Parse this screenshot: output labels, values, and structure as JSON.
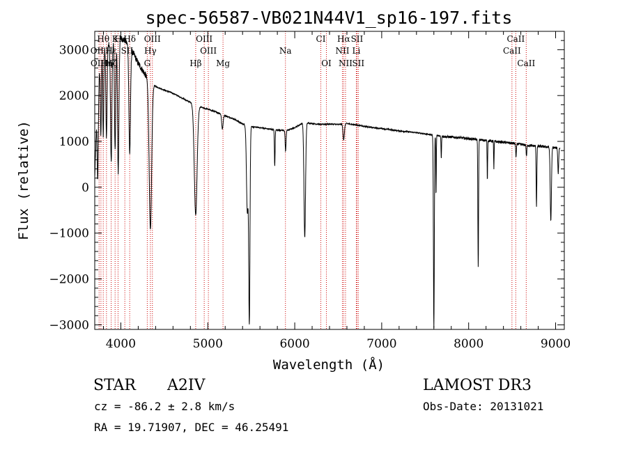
{
  "chart_data": {
    "type": "line",
    "title": "spec-56587-VB021N44V1_sp16-197.fits",
    "xlabel": "Wavelength (Å)",
    "ylabel": "Flux (relative)",
    "xlim": [
      3700,
      9100
    ],
    "ylim": [
      -3100,
      3400
    ],
    "xticks": [
      4000,
      5000,
      6000,
      7000,
      8000,
      9000
    ],
    "yticks": [
      -3000,
      -2000,
      -1000,
      0,
      1000,
      2000,
      3000
    ],
    "continuum": [
      [
        3700,
        200
      ],
      [
        3720,
        1300
      ],
      [
        3750,
        2400
      ],
      [
        3780,
        3000
      ],
      [
        3800,
        3050
      ],
      [
        3850,
        3100
      ],
      [
        3900,
        3150
      ],
      [
        3950,
        3200
      ],
      [
        4000,
        3250
      ],
      [
        4050,
        3200
      ],
      [
        4100,
        3050
      ],
      [
        4150,
        2900
      ],
      [
        4200,
        2700
      ],
      [
        4250,
        2550
      ],
      [
        4300,
        2400
      ],
      [
        4320,
        2300
      ],
      [
        4400,
        2200
      ],
      [
        4500,
        2120
      ],
      [
        4600,
        2050
      ],
      [
        4700,
        1950
      ],
      [
        4800,
        1850
      ],
      [
        4900,
        1760
      ],
      [
        5000,
        1700
      ],
      [
        5100,
        1640
      ],
      [
        5200,
        1560
      ],
      [
        5300,
        1490
      ],
      [
        5400,
        1380
      ],
      [
        5500,
        1320
      ],
      [
        5600,
        1300
      ],
      [
        5700,
        1270
      ],
      [
        5800,
        1250
      ],
      [
        5900,
        1230
      ],
      [
        6000,
        1300
      ],
      [
        6100,
        1410
      ],
      [
        6200,
        1390
      ],
      [
        6300,
        1370
      ],
      [
        6400,
        1380
      ],
      [
        6500,
        1370
      ],
      [
        6600,
        1390
      ],
      [
        6700,
        1360
      ],
      [
        6800,
        1330
      ],
      [
        6900,
        1300
      ],
      [
        7000,
        1280
      ],
      [
        7200,
        1230
      ],
      [
        7400,
        1190
      ],
      [
        7550,
        1150
      ],
      [
        7700,
        1110
      ],
      [
        7900,
        1080
      ],
      [
        8100,
        1040
      ],
      [
        8300,
        1000
      ],
      [
        8500,
        960
      ],
      [
        8700,
        910
      ],
      [
        8900,
        880
      ],
      [
        9050,
        850
      ]
    ],
    "absorption": [
      {
        "center": 3735,
        "depth": 1700,
        "width": 6
      },
      {
        "center": 3771,
        "depth": 1700,
        "width": 6
      },
      {
        "center": 3798,
        "depth": 1900,
        "width": 6
      },
      {
        "center": 3835,
        "depth": 2000,
        "width": 7
      },
      {
        "center": 3889,
        "depth": 2600,
        "width": 8
      },
      {
        "center": 3934,
        "depth": 2400,
        "width": 7
      },
      {
        "center": 3970,
        "depth": 2900,
        "width": 8
      },
      {
        "center": 4102,
        "depth": 2300,
        "width": 9
      },
      {
        "center": 4340,
        "depth": 3200,
        "width": 14
      },
      {
        "center": 4861,
        "depth": 2400,
        "width": 16
      },
      {
        "center": 5168,
        "depth": 320,
        "width": 8
      },
      {
        "center": 5455,
        "depth": 1900,
        "width": 10
      },
      {
        "center": 5478,
        "depth": 4200,
        "width": 7
      },
      {
        "center": 5770,
        "depth": 800,
        "width": 4
      },
      {
        "center": 5895,
        "depth": 450,
        "width": 5
      },
      {
        "center": 6115,
        "depth": 2500,
        "width": 9
      },
      {
        "center": 6563,
        "depth": 350,
        "width": 8
      },
      {
        "center": 7600,
        "depth": 4200,
        "width": 5
      },
      {
        "center": 7625,
        "depth": 1300,
        "width": 3
      },
      {
        "center": 7685,
        "depth": 500,
        "width": 3
      },
      {
        "center": 8110,
        "depth": 2800,
        "width": 4
      },
      {
        "center": 8215,
        "depth": 850,
        "width": 3
      },
      {
        "center": 8290,
        "depth": 600,
        "width": 3
      },
      {
        "center": 8545,
        "depth": 300,
        "width": 4
      },
      {
        "center": 8665,
        "depth": 250,
        "width": 4
      },
      {
        "center": 8780,
        "depth": 1300,
        "width": 4
      },
      {
        "center": 8945,
        "depth": 1600,
        "width": 7
      },
      {
        "center": 9030,
        "depth": 550,
        "width": 5
      }
    ],
    "line_markers": [
      {
        "label": "Hθ",
        "wave": 3798,
        "row": 0
      },
      {
        "label": "K",
        "wave": 3934,
        "row": 0
      },
      {
        "label": "H",
        "wave": 3968,
        "row": 0
      },
      {
        "label": "Hδ",
        "wave": 4102,
        "row": 0
      },
      {
        "label": "OIII",
        "wave": 4363,
        "row": 0
      },
      {
        "label": "OIII",
        "wave": 4959,
        "row": 0
      },
      {
        "label": "CI",
        "wave": 6300,
        "row": 0
      },
      {
        "label": "Hα",
        "wave": 6563,
        "row": 0
      },
      {
        "label": "SII",
        "wave": 6716,
        "row": 0
      },
      {
        "label": "CaII",
        "wave": 8542,
        "row": 0
      },
      {
        "label": "OII",
        "wave": 3727,
        "row": 1
      },
      {
        "label": "Hε",
        "wave": 3889,
        "row": 1
      },
      {
        "label": "SII",
        "wave": 4072,
        "row": 1
      },
      {
        "label": "Hγ",
        "wave": 4340,
        "row": 1
      },
      {
        "label": "OIII",
        "wave": 5007,
        "row": 1
      },
      {
        "label": "Na",
        "wave": 5893,
        "row": 1
      },
      {
        "label": "NII",
        "wave": 6548,
        "row": 1
      },
      {
        "label": "Li",
        "wave": 6708,
        "row": 1
      },
      {
        "label": "CaII",
        "wave": 8498,
        "row": 1
      },
      {
        "label": "OII",
        "wave": 3729,
        "row": 2
      },
      {
        "label": "Hη",
        "wave": 3835,
        "row": 2
      },
      {
        "label": "Hζ",
        "wave": 3889,
        "row": 2
      },
      {
        "label": "G",
        "wave": 4304,
        "row": 2
      },
      {
        "label": "Hβ",
        "wave": 4861,
        "row": 2
      },
      {
        "label": "Mg",
        "wave": 5175,
        "row": 2
      },
      {
        "label": "OI",
        "wave": 6364,
        "row": 2
      },
      {
        "label": "NII",
        "wave": 6584,
        "row": 2
      },
      {
        "label": "SII",
        "wave": 6731,
        "row": 2
      },
      {
        "label": "CaII",
        "wave": 8662,
        "row": 2
      }
    ],
    "marker_extra_lines": [
      3750,
      3771,
      3798,
      3835,
      3889,
      3934,
      3968,
      4046,
      4102,
      4304,
      4340,
      4363,
      4861,
      4959,
      5007,
      5175,
      5893,
      6300,
      6364,
      6548,
      6563,
      6584,
      6708,
      6716,
      6731,
      8498,
      8542,
      8662
    ],
    "info": {
      "object_class": "STAR",
      "subclass": "A2IV",
      "survey": "LAMOST DR3",
      "cz": "cz = -86.2 ± 2.8 km/s",
      "obs_date": "Obs-Date: 20131021",
      "radec": "RA =  19.71907, DEC =  46.25491"
    }
  }
}
